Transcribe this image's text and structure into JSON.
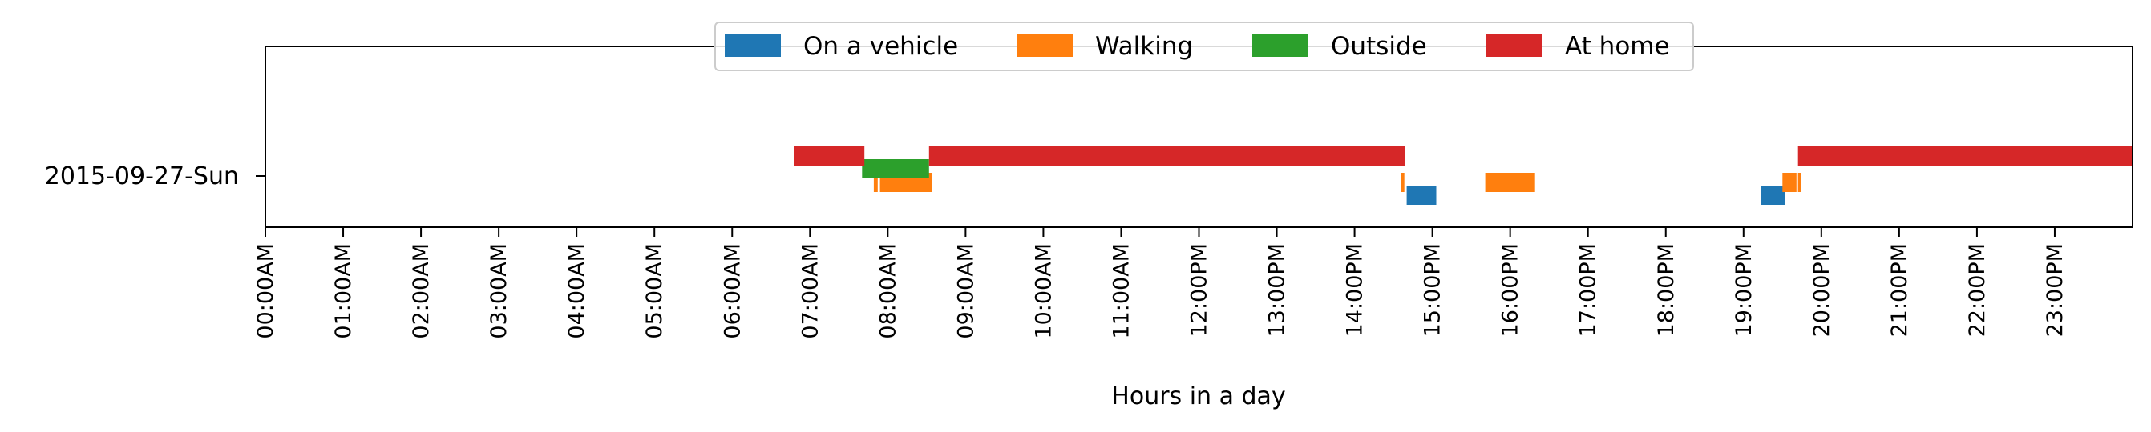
{
  "chart_data": {
    "type": "bar",
    "orientation": "horizontal",
    "xlabel": "Hours in a day",
    "xlim": [
      0,
      24
    ],
    "xtick_labels": [
      "00:00AM",
      "01:00AM",
      "02:00AM",
      "03:00AM",
      "04:00AM",
      "05:00AM",
      "06:00AM",
      "07:00AM",
      "08:00AM",
      "09:00AM",
      "10:00AM",
      "11:00AM",
      "12:00PM",
      "13:00PM",
      "14:00PM",
      "15:00PM",
      "16:00PM",
      "17:00PM",
      "18:00PM",
      "19:00PM",
      "20:00PM",
      "21:00PM",
      "22:00PM",
      "23:00PM"
    ],
    "categories": [
      "2015-09-27-Sun"
    ],
    "legend_placement": "top-center",
    "grid": false,
    "series": [
      {
        "name": "On a vehicle",
        "color": "#1f77b4",
        "intervals": [
          [
            14.67,
            15.05
          ],
          [
            19.22,
            19.53
          ]
        ]
      },
      {
        "name": "Walking",
        "color": "#ff7f0e",
        "intervals": [
          [
            7.82,
            7.87
          ],
          [
            7.9,
            8.57
          ],
          [
            14.6,
            14.64
          ],
          [
            15.68,
            16.32
          ],
          [
            19.5,
            19.68
          ],
          [
            19.7,
            19.74
          ]
        ]
      },
      {
        "name": "Outside",
        "color": "#2ca02c",
        "intervals": [
          [
            7.67,
            8.53
          ]
        ]
      },
      {
        "name": "At home",
        "color": "#d62728",
        "intervals": [
          [
            6.8,
            7.7
          ],
          [
            8.53,
            14.65
          ],
          [
            19.7,
            24.0
          ]
        ]
      }
    ]
  }
}
